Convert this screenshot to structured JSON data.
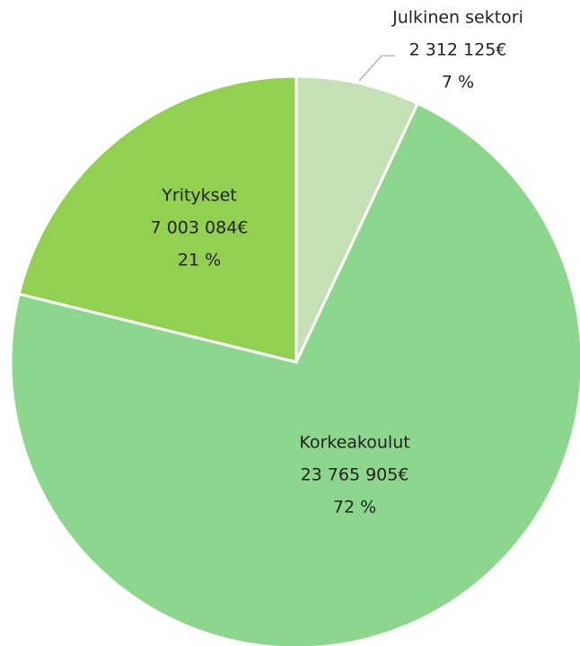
{
  "chart_data": {
    "type": "pie",
    "categories": [
      "Julkinen sektori",
      "Korkeakoulut",
      "Yritykset"
    ],
    "values": [
      2312125,
      23765905,
      7003084
    ],
    "value_labels": [
      "2 312 125€",
      "23 765 905€",
      "7 003 084€"
    ],
    "percent_labels": [
      "7 %",
      "72 %",
      "21 %"
    ],
    "colors": [
      "#c5e0b4",
      "#8dd68d",
      "#92d050"
    ]
  }
}
